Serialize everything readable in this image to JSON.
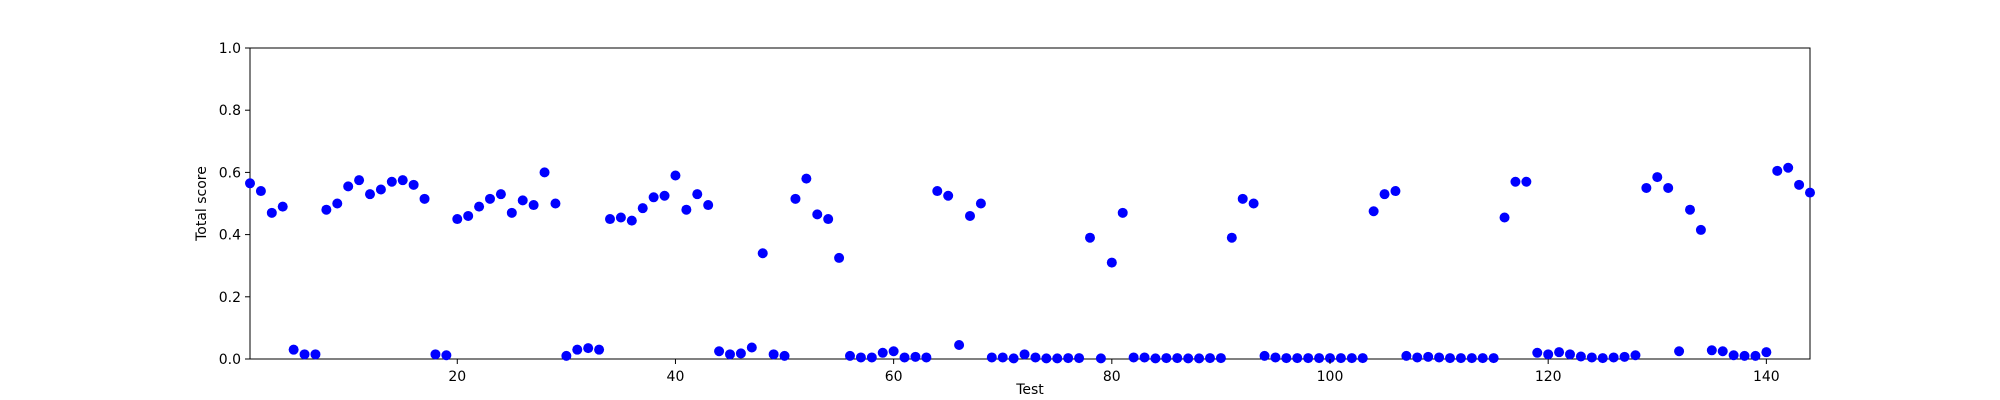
{
  "chart_data": {
    "type": "scatter",
    "xlabel": "Test",
    "ylabel": "Total score",
    "xlim": [
      1,
      144
    ],
    "ylim": [
      0.0,
      1.0
    ],
    "xticks": [
      20,
      40,
      60,
      80,
      100,
      120,
      140
    ],
    "yticks": [
      0.0,
      0.2,
      0.4,
      0.6,
      0.8,
      1.0
    ],
    "xtick_labels": [
      "20",
      "40",
      "60",
      "80",
      "100",
      "120",
      "140"
    ],
    "ytick_labels": [
      "0.0",
      "0.2",
      "0.4",
      "0.6",
      "0.8",
      "1.0"
    ],
    "grid": false,
    "marker_color": "#0000ff",
    "series": [
      {
        "x": [
          1,
          2,
          3,
          4,
          5,
          6,
          7,
          8,
          9,
          10,
          11,
          12,
          13,
          14,
          15,
          16,
          17,
          18,
          19,
          20,
          21,
          22,
          23,
          24,
          25,
          26,
          27,
          28,
          29,
          30,
          31,
          32,
          33,
          34,
          35,
          36,
          37,
          38,
          39,
          40,
          41,
          42,
          43,
          44,
          45,
          46,
          47,
          48,
          49,
          50,
          51,
          52,
          53,
          54,
          55,
          56,
          57,
          58,
          59,
          60,
          61,
          62,
          63,
          64,
          65,
          66,
          67,
          68,
          69,
          70,
          71,
          72,
          73,
          74,
          75,
          76,
          77,
          78,
          79,
          80,
          81,
          82,
          83,
          84,
          85,
          86,
          87,
          88,
          89,
          90,
          91,
          92,
          93,
          94,
          95,
          96,
          97,
          98,
          99,
          100,
          101,
          102,
          103,
          104,
          105,
          106,
          107,
          108,
          109,
          110,
          111,
          112,
          113,
          114,
          115,
          116,
          117,
          118,
          119,
          120,
          121,
          122,
          123,
          124,
          125,
          126,
          127,
          128,
          129,
          130,
          131,
          132,
          133,
          134,
          135,
          136,
          137,
          138,
          139,
          140,
          141,
          142,
          143,
          144
        ],
        "y": [
          0.565,
          0.54,
          0.47,
          0.49,
          0.03,
          0.015,
          0.015,
          0.48,
          0.5,
          0.555,
          0.575,
          0.53,
          0.545,
          0.57,
          0.575,
          0.56,
          0.515,
          0.015,
          0.012,
          0.45,
          0.46,
          0.49,
          0.515,
          0.53,
          0.47,
          0.51,
          0.495,
          0.6,
          0.5,
          0.01,
          0.03,
          0.035,
          0.03,
          0.45,
          0.455,
          0.445,
          0.485,
          0.52,
          0.525,
          0.59,
          0.48,
          0.53,
          0.495,
          0.025,
          0.015,
          0.018,
          0.037,
          0.34,
          0.015,
          0.01,
          0.515,
          0.58,
          0.465,
          0.45,
          0.325,
          0.01,
          0.005,
          0.005,
          0.02,
          0.025,
          0.005,
          0.007,
          0.005,
          0.54,
          0.525,
          0.045,
          0.46,
          0.5,
          0.005,
          0.005,
          0.002,
          0.015,
          0.005,
          0.002,
          0.002,
          0.003,
          0.003,
          0.39,
          0.002,
          0.31,
          0.47,
          0.005,
          0.005,
          0.002,
          0.003,
          0.003,
          0.002,
          0.002,
          0.003,
          0.003,
          0.39,
          0.515,
          0.5,
          0.01,
          0.005,
          0.003,
          0.003,
          0.003,
          0.003,
          0.003,
          0.003,
          0.003,
          0.003,
          0.475,
          0.53,
          0.54,
          0.01,
          0.005,
          0.007,
          0.005,
          0.003,
          0.003,
          0.003,
          0.003,
          0.003,
          0.455,
          0.57,
          0.57,
          0.02,
          0.015,
          0.022,
          0.015,
          0.008,
          0.005,
          0.003,
          0.005,
          0.007,
          0.012,
          0.55,
          0.585,
          0.55,
          0.025,
          0.48,
          0.415,
          0.028,
          0.025,
          0.012,
          0.01,
          0.01,
          0.022,
          0.605,
          0.615,
          0.56,
          0.535
        ]
      }
    ]
  }
}
